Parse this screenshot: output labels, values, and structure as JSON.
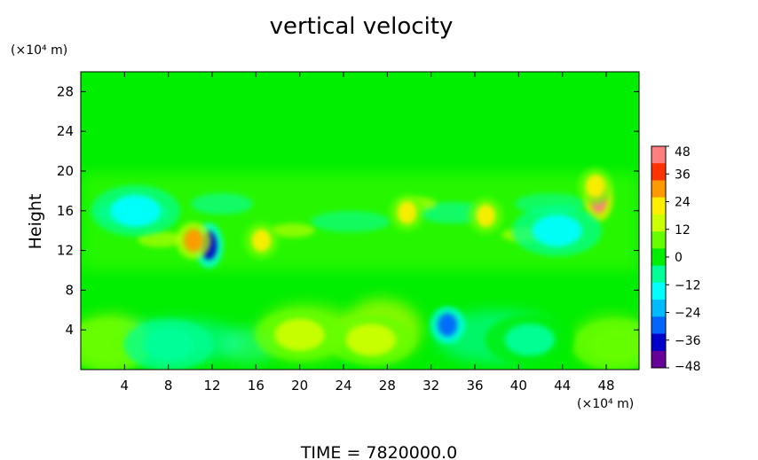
{
  "chart_data": {
    "type": "heatmap",
    "title": "vertical velocity",
    "ylabel": "Height",
    "y_unit": "(×10⁴ m)",
    "x_unit": "(×10⁴ m)",
    "xlim": [
      0,
      51
    ],
    "ylim": [
      0,
      30
    ],
    "x_ticks": [
      "4",
      "8",
      "12",
      "16",
      "20",
      "24",
      "28",
      "32",
      "36",
      "40",
      "44",
      "48"
    ],
    "y_ticks": [
      "4",
      "8",
      "12",
      "16",
      "20",
      "24",
      "28"
    ],
    "x_tick_values": [
      4,
      8,
      12,
      16,
      20,
      24,
      28,
      32,
      36,
      40,
      44,
      48
    ],
    "y_tick_values": [
      4,
      8,
      12,
      16,
      20,
      24,
      28
    ],
    "colorbar": {
      "labels": [
        "48",
        "36",
        "24",
        "12",
        "0",
        "−12",
        "−24",
        "−36",
        "−48"
      ],
      "values": [
        48,
        36,
        24,
        12,
        0,
        -12,
        -24,
        -36,
        -48
      ],
      "colors_top_to_bottom": [
        "#ff7f7f",
        "#ff3300",
        "#ff9900",
        "#ffee00",
        "#ccff00",
        "#66ff00",
        "#00ee00",
        "#00ff99",
        "#00ffff",
        "#00bbff",
        "#0066ff",
        "#0000cc",
        "#660099"
      ]
    },
    "background_value": 0,
    "features": [
      {
        "x": 11.7,
        "y": 12.5,
        "value": -40
      },
      {
        "x": 10.3,
        "y": 13.0,
        "value": 26
      },
      {
        "x": 16.5,
        "y": 13.0,
        "value": 20
      },
      {
        "x": 29.8,
        "y": 15.8,
        "value": 22
      },
      {
        "x": 37.0,
        "y": 15.5,
        "value": 22
      },
      {
        "x": 47.3,
        "y": 17.2,
        "value": 45
      },
      {
        "x": 47.0,
        "y": 18.5,
        "value": 22
      },
      {
        "x": 33.5,
        "y": 4.5,
        "value": -30
      },
      {
        "x": 26.5,
        "y": 3.0,
        "value": 16
      },
      {
        "x": 20.0,
        "y": 3.5,
        "value": 12
      },
      {
        "x": 2.5,
        "y": 2.5,
        "value": 10
      },
      {
        "x": 49.0,
        "y": 2.5,
        "value": 10
      },
      {
        "x": 8.0,
        "y": 2.5,
        "value": -10
      },
      {
        "x": 41.0,
        "y": 3.0,
        "value": -8
      },
      {
        "x": 43.5,
        "y": 14.0,
        "value": -16
      },
      {
        "x": 5.0,
        "y": 16.0,
        "value": -12
      }
    ]
  },
  "footer": {
    "time_label": "TIME = 7820000.0"
  }
}
